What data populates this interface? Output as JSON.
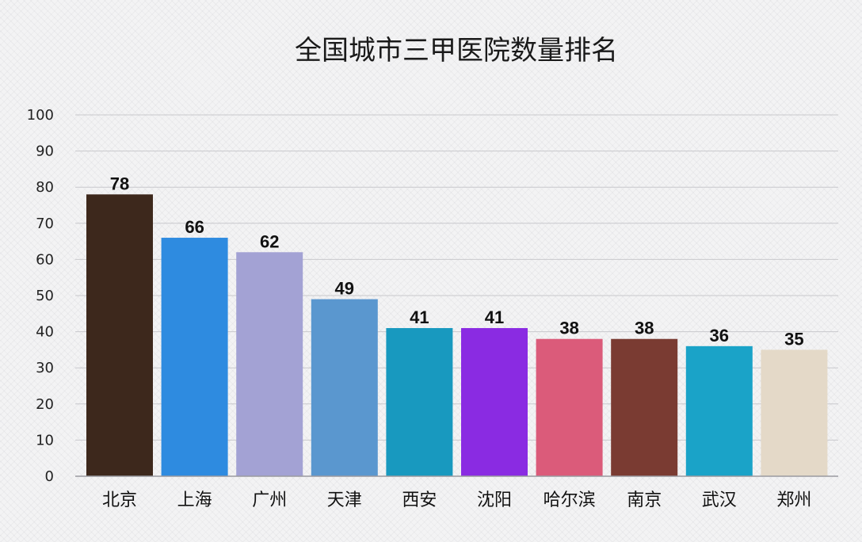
{
  "chart_data": {
    "type": "bar",
    "title": "全国城市三甲医院数量排名",
    "xlabel": "",
    "ylabel": "",
    "ylim": [
      0,
      100
    ],
    "yticks": [
      0,
      10,
      20,
      30,
      40,
      50,
      60,
      70,
      80,
      90,
      100
    ],
    "grid": true,
    "legend": "none",
    "categories": [
      "北京",
      "上海",
      "广州",
      "天津",
      "西安",
      "沈阳",
      "哈尔滨",
      "南京",
      "武汉",
      "郑州"
    ],
    "values": [
      78,
      66,
      62,
      49,
      41,
      41,
      38,
      38,
      36,
      35
    ],
    "colors": [
      "#3d281c",
      "#2e8be0",
      "#a3a2d4",
      "#5a97cf",
      "#1899bf",
      "#8a2be2",
      "#db5b7a",
      "#7a3b32",
      "#1aa3c8",
      "#e4d9c8"
    ]
  }
}
